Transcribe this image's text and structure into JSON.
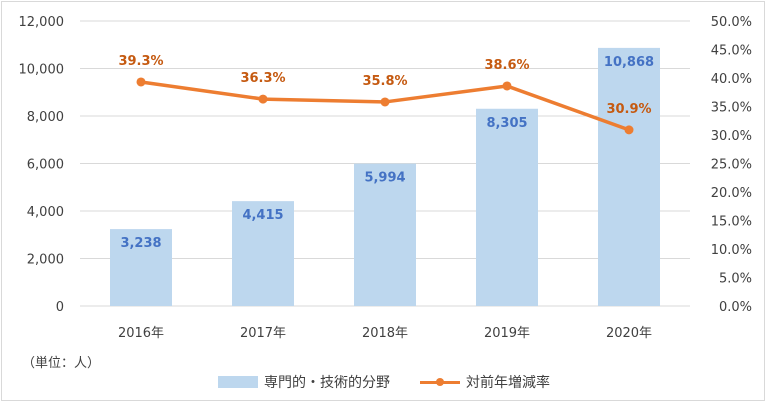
{
  "chart_data": {
    "type": "bar",
    "categories": [
      "2016年",
      "2017年",
      "2018年",
      "2019年",
      "2020年"
    ],
    "series": [
      {
        "name": "専門的・技術的分野",
        "type": "bar",
        "axis": "left",
        "values": [
          3238,
          4415,
          5994,
          8305,
          10868
        ],
        "labels": [
          "3,238",
          "4,415",
          "5,994",
          "8,305",
          "10,868"
        ],
        "color": "#bdd7ee"
      },
      {
        "name": "対前年増減率",
        "type": "line",
        "axis": "right",
        "values": [
          39.3,
          36.3,
          35.8,
          38.6,
          30.9
        ],
        "labels": [
          "39.3%",
          "36.3%",
          "35.8%",
          "38.6%",
          "30.9%"
        ],
        "color": "#ed7d31"
      }
    ],
    "y_left": {
      "ylim": [
        0,
        12000
      ],
      "ticks": [
        "0",
        "2,000",
        "4,000",
        "6,000",
        "8,000",
        "10,000",
        "12,000"
      ]
    },
    "y_right": {
      "ylim": [
        0,
        50
      ],
      "ticks": [
        "0.0%",
        "5.0%",
        "10.0%",
        "15.0%",
        "20.0%",
        "25.0%",
        "30.0%",
        "35.0%",
        "40.0%",
        "45.0%",
        "50.0%"
      ]
    },
    "grid": true,
    "legend_position": "bottom",
    "unit_note": "（単位：人）",
    "bar_label_color": "#4472c4",
    "line_label_color": "#c55a11"
  }
}
